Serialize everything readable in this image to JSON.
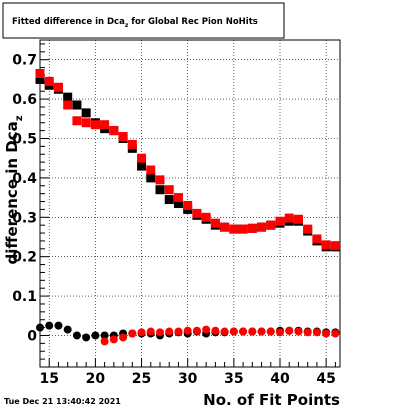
{
  "chart_data": {
    "type": "scatter",
    "title": "Fitted difference in Dca",
    "title_subscript": "z",
    "title_suffix": " for Global Rec Pion NoHits",
    "xlabel": "No. of Fit Points",
    "ylabel_prefix": "difference in Dca",
    "ylabel_subscript": "z",
    "xlim": [
      14,
      46.5
    ],
    "ylim": [
      -0.08,
      0.75
    ],
    "xticks": [
      15,
      20,
      25,
      30,
      35,
      40,
      45
    ],
    "yticks": [
      0,
      0.1,
      0.2,
      0.3,
      0.4,
      0.5,
      0.6,
      0.7
    ],
    "grid": true,
    "legend": "none",
    "series": [
      {
        "color": "#000000",
        "marker": "square",
        "x": [
          14,
          15,
          16,
          17,
          18,
          19,
          20,
          21,
          22,
          23,
          24,
          25,
          26,
          27,
          28,
          29,
          30,
          31,
          32,
          33,
          34,
          35,
          36,
          37,
          38,
          39,
          40,
          41,
          42,
          43,
          44,
          45,
          46
        ],
        "y": [
          0.65,
          0.635,
          0.625,
          0.605,
          0.585,
          0.565,
          0.54,
          0.525,
          0.52,
          0.5,
          0.475,
          0.43,
          0.4,
          0.37,
          0.345,
          0.335,
          0.32,
          0.305,
          0.295,
          0.28,
          0.275,
          0.27,
          0.27,
          0.272,
          0.275,
          0.28,
          0.285,
          0.29,
          0.29,
          0.265,
          0.24,
          0.225,
          0.225
        ]
      },
      {
        "color": "#ff0000",
        "marker": "square",
        "x": [
          14,
          15,
          16,
          17,
          18,
          19,
          20,
          21,
          22,
          23,
          24,
          25,
          26,
          27,
          28,
          29,
          30,
          31,
          32,
          33,
          34,
          35,
          36,
          37,
          38,
          39,
          40,
          41,
          42,
          43,
          44,
          45,
          46
        ],
        "y": [
          0.665,
          0.645,
          0.63,
          0.585,
          0.545,
          0.54,
          0.535,
          0.535,
          0.52,
          0.505,
          0.485,
          0.45,
          0.42,
          0.395,
          0.37,
          0.35,
          0.33,
          0.31,
          0.3,
          0.285,
          0.275,
          0.27,
          0.27,
          0.272,
          0.275,
          0.28,
          0.29,
          0.298,
          0.295,
          0.27,
          0.245,
          0.23,
          0.228
        ]
      },
      {
        "color": "#000000",
        "marker": "circle",
        "x": [
          14,
          15,
          16,
          17,
          18,
          19,
          20,
          21,
          22,
          23,
          24,
          25,
          26,
          27,
          28,
          29,
          30,
          31,
          32,
          33,
          34,
          35,
          36,
          37,
          38,
          39,
          40,
          41,
          42,
          43,
          44,
          45,
          46
        ],
        "y": [
          0.02,
          0.025,
          0.025,
          0.015,
          0.0,
          -0.005,
          0.0,
          0.0,
          0.0,
          0.005,
          0.005,
          0.005,
          0.005,
          0.0,
          0.005,
          0.008,
          0.005,
          0.01,
          0.005,
          0.008,
          0.008,
          0.01,
          0.01,
          0.01,
          0.01,
          0.01,
          0.012,
          0.012,
          0.012,
          0.01,
          0.01,
          0.008,
          0.008
        ]
      },
      {
        "color": "#ff0000",
        "marker": "circle",
        "x": [
          21,
          22,
          23,
          24,
          25,
          26,
          27,
          28,
          29,
          30,
          31,
          32,
          33,
          34,
          35,
          36,
          37,
          38,
          39,
          40,
          41,
          42,
          43,
          44,
          45,
          46
        ],
        "y": [
          -0.015,
          -0.01,
          -0.005,
          0.005,
          0.008,
          0.01,
          0.008,
          0.01,
          0.01,
          0.012,
          0.012,
          0.015,
          0.012,
          0.01,
          0.01,
          0.01,
          0.01,
          0.01,
          0.01,
          0.008,
          0.012,
          0.01,
          0.008,
          0.008,
          0.005,
          0.005
        ]
      }
    ]
  },
  "footer": {
    "timestamp": "Tue Dec 21 13:40:42 2021"
  }
}
